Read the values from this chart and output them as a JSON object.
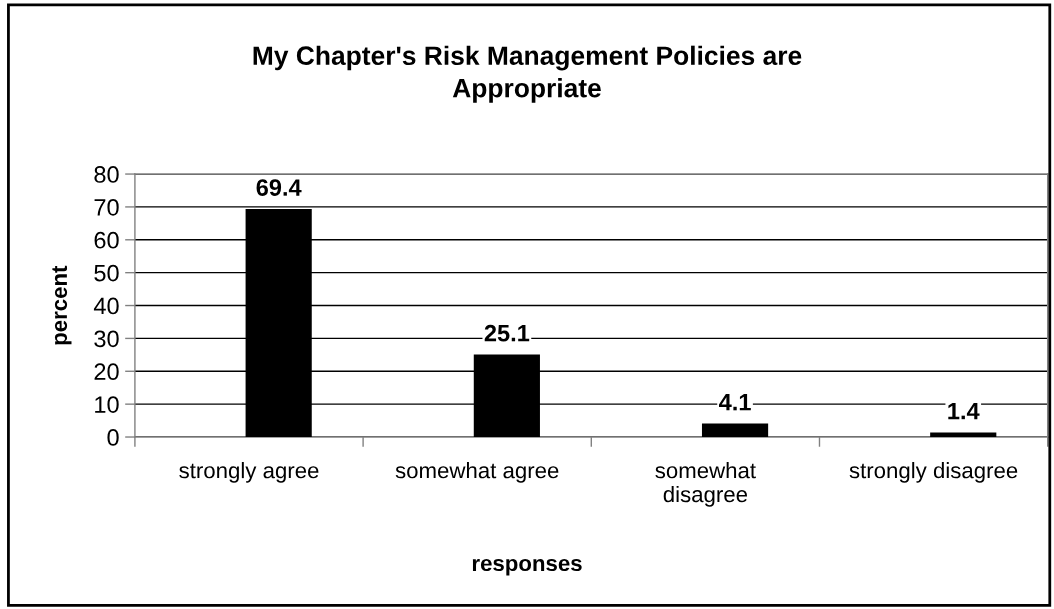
{
  "chart_data": {
    "type": "bar",
    "title": "My Chapter's Risk Management Policies are\nAppropriate",
    "xlabel": "responses",
    "ylabel": "percent",
    "categories": [
      "strongly agree",
      "somewhat agree",
      "somewhat\ndisagree",
      "strongly disagree"
    ],
    "values": [
      69.4,
      25.1,
      4.1,
      1.4
    ],
    "color": "#000000",
    "ylim": [
      0,
      80
    ],
    "yticks": [
      0,
      10,
      20,
      30,
      40,
      50,
      60,
      70,
      80
    ],
    "grid": "y",
    "data_labels": true
  }
}
